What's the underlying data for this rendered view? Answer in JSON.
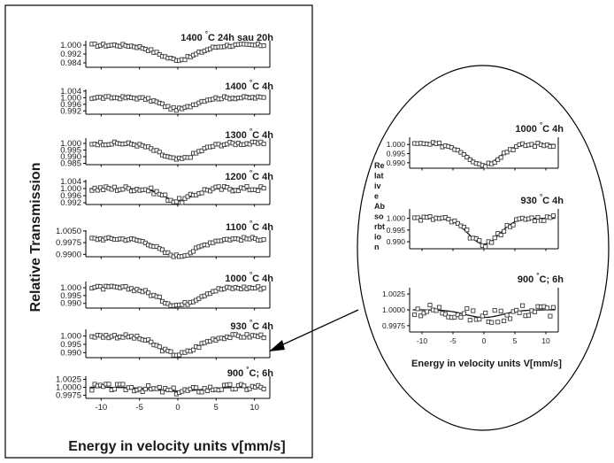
{
  "chart_data": [
    {
      "type": "scatter",
      "title": "",
      "xlabel": "Energy in velocity units v[mm/s]",
      "ylabel": "Relative Transmission",
      "xlim": [
        -12,
        12
      ],
      "x_ticks": [
        "-10",
        "-5",
        "0",
        "5",
        "10"
      ],
      "panels": [
        {
          "label": "1400 °C 24h sau 20h",
          "ylim": [
            0.98,
            1.004
          ],
          "yticks": [
            "1.000",
            "0.992",
            "0.984"
          ],
          "depth": 0.013,
          "width": 2.5,
          "noise": 0.0012
        },
        {
          "label": "1400 °C 4h",
          "ylim": [
            0.99,
            1.005
          ],
          "yticks": [
            "1.004",
            "1.000",
            "0.996",
            "0.992"
          ],
          "depth": 0.007,
          "width": 2.0,
          "noise": 0.0008
        },
        {
          "label": "1300 °C 4h",
          "ylim": [
            0.984,
            1.004
          ],
          "yticks": [
            "1.000",
            "0.995",
            "0.990",
            "0.985"
          ],
          "depth": 0.012,
          "width": 2.4,
          "noise": 0.0012
        },
        {
          "label": "1200 °C 4h",
          "ylim": [
            0.991,
            1.005
          ],
          "yticks": [
            "1.004",
            "1.000",
            "0.996",
            "0.992"
          ],
          "depth": 0.007,
          "width": 1.8,
          "noise": 0.0015
        },
        {
          "label": "1100 °C 4h",
          "ylim": [
            0.9885,
            1.0055
          ],
          "yticks": [
            "1.0050",
            "0.9975",
            "0.9900"
          ],
          "depth": 0.011,
          "width": 2.4,
          "noise": 0.001
        },
        {
          "label": "1000 °C 4h",
          "ylim": [
            0.987,
            1.004
          ],
          "yticks": [
            "1.000",
            "0.995",
            "0.990"
          ],
          "depth": 0.011,
          "width": 2.5,
          "noise": 0.0012
        },
        {
          "label": "930 °C 4h",
          "ylim": [
            0.987,
            1.004
          ],
          "yticks": [
            "1.000",
            "0.995",
            "0.990"
          ],
          "depth": 0.011,
          "width": 2.5,
          "noise": 0.0012
        },
        {
          "label": "900 °C; 6h",
          "ylim": [
            0.9965,
            1.0035
          ],
          "yticks": [
            "1.0025",
            "1.0000",
            "0.9975"
          ],
          "depth": 0.0012,
          "width": 3.0,
          "noise": 0.0011
        }
      ]
    },
    {
      "type": "scatter",
      "title": "",
      "xlabel": "Energy in velocity units V[mm/s]",
      "ylabel": "Relative Absorbtion",
      "xlim": [
        -12,
        12
      ],
      "x_ticks": [
        "-10",
        "-5",
        "0",
        "5",
        "10"
      ],
      "panels": [
        {
          "label": "1000 °C 4h",
          "ylim": [
            0.987,
            1.004
          ],
          "yticks": [
            "1.000",
            "0.995",
            "0.990"
          ],
          "depth": 0.011,
          "width": 2.5,
          "noise": 0.0012
        },
        {
          "label": "930 °C 4h",
          "ylim": [
            0.987,
            1.004
          ],
          "yticks": [
            "1.000",
            "0.995",
            "0.990"
          ],
          "depth": 0.011,
          "width": 2.5,
          "noise": 0.0012
        },
        {
          "label": "900 °C; 6h",
          "ylim": [
            0.9965,
            1.0035
          ],
          "yticks": [
            "1.0025",
            "1.0000",
            "0.9975"
          ],
          "depth": 0.0012,
          "width": 3.0,
          "noise": 0.0011
        }
      ]
    }
  ],
  "inset_ylabel_lines": [
    "Re",
    "lat",
    "iv",
    "e",
    "Ab",
    "so",
    "rbt",
    "io",
    "n"
  ]
}
